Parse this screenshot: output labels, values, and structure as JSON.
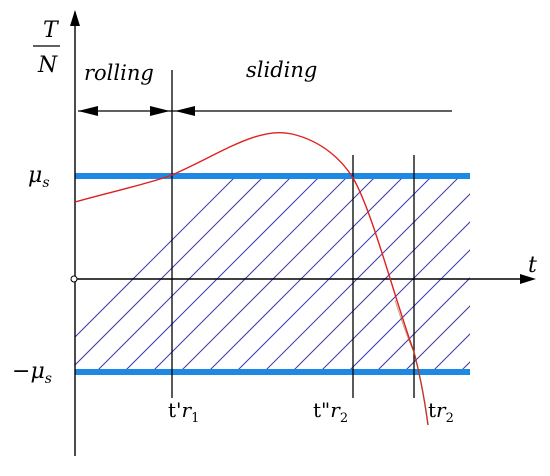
{
  "y_axis_label": {
    "numerator": "T",
    "denominator": "N"
  },
  "x_axis_label": "t",
  "regions": {
    "rolling": "rolling",
    "sliding": "sliding"
  },
  "levels": {
    "upper": {
      "base": "μ",
      "sub": "s"
    },
    "lower": {
      "sign": "−",
      "base": "μ",
      "sub": "s"
    }
  },
  "time_markers": [
    {
      "prefix": "t'",
      "base": "r",
      "sub": "1"
    },
    {
      "prefix": "t\"",
      "base": "r",
      "sub": "2"
    },
    {
      "prefix": "t",
      "base": "r",
      "sub": "2"
    }
  ],
  "colors": {
    "axis": "#000000",
    "band": "#1e88e5",
    "hatch": "#3a3aa8",
    "curve": "#e02020",
    "curve_tail": "#8a5a2a"
  }
}
